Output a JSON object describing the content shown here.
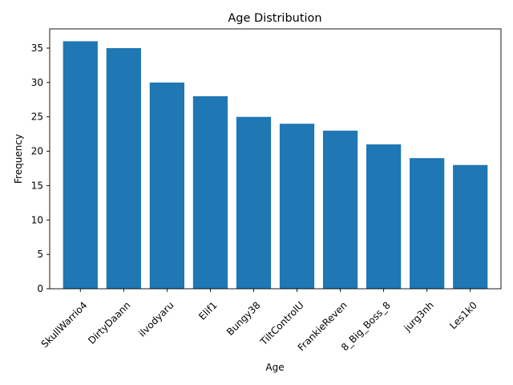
{
  "chart_data": {
    "type": "bar",
    "title": "Age Distribution",
    "xlabel": "Age",
    "ylabel": "Frequency",
    "categories": [
      "SkullWarrio4",
      "DirtyDaann",
      "ilvodyaru",
      "Elif1",
      "Bungy38",
      "TiltControlU",
      "FrankieReven",
      "8_Big_Boss_8",
      "jurg3nh",
      "Les1k0"
    ],
    "values": [
      36,
      35,
      30,
      28,
      25,
      24,
      23,
      21,
      19,
      18
    ],
    "ylim": [
      0,
      37.8
    ],
    "yticks": [
      0,
      5,
      10,
      15,
      20,
      25,
      30,
      35
    ],
    "grid": false,
    "bar_color": "#1f77b4"
  }
}
